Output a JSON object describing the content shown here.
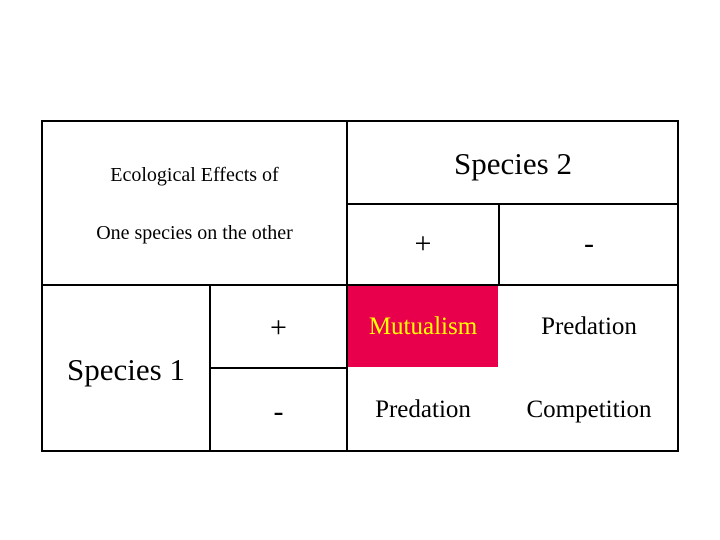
{
  "header": {
    "title_line1": "Ecological Effects of",
    "title_line2": "One species on the other",
    "species2_label": "Species 2",
    "species1_label": "Species 1"
  },
  "columns": {
    "plus": "+",
    "minus": "-"
  },
  "rows": {
    "plus": "+",
    "minus": "-"
  },
  "cells": {
    "plus_plus": "Mutualism",
    "plus_minus": "Predation",
    "minus_plus": "Predation",
    "minus_minus": "Competition"
  },
  "colors": {
    "highlight_bg": "#e8004d",
    "highlight_text": "#ffff00"
  }
}
